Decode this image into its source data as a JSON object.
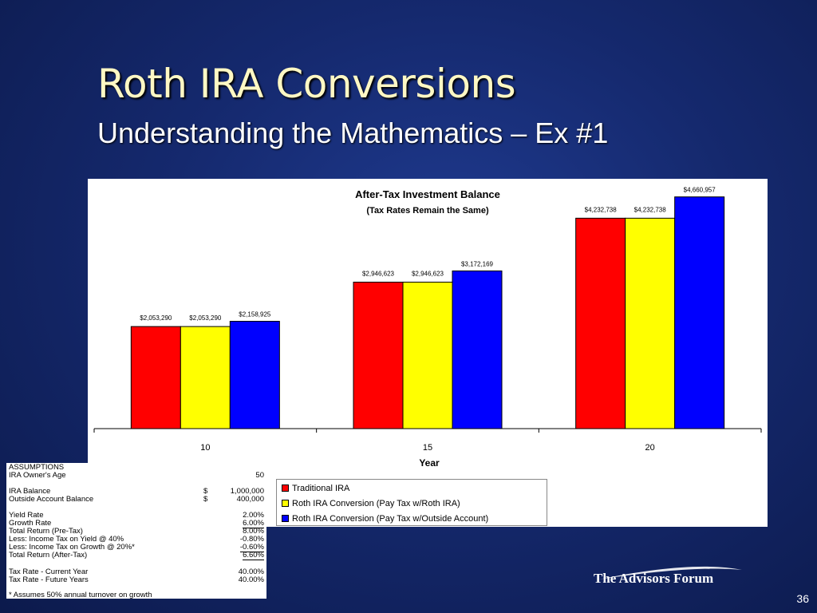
{
  "slide": {
    "title": "Roth IRA Conversions",
    "subtitle": "Understanding the Mathematics – Ex #1",
    "page_number": "36",
    "logo_text": "The Advisors Forum"
  },
  "chart_data": {
    "type": "bar",
    "title": "After-Tax Investment Balance",
    "subtitle": "(Tax Rates Remain the Same)",
    "xlabel": "Year",
    "ylabel": "",
    "categories": [
      "10",
      "15",
      "20"
    ],
    "ylim": [
      0,
      5000000
    ],
    "grid": false,
    "series": [
      {
        "name": "Traditional IRA",
        "color": "#ff0000",
        "values": [
          2053290,
          2946623,
          4232738
        ],
        "labels": [
          "$2,053,290",
          "$2,946,623",
          "$4,232,738"
        ]
      },
      {
        "name": "Roth IRA Conversion (Pay Tax w/Roth IRA)",
        "color": "#ffff00",
        "values": [
          2053290,
          2946623,
          4232738
        ],
        "labels": [
          "$2,053,290",
          "$2,946,623",
          "$4,232,738"
        ]
      },
      {
        "name": "Roth IRA Conversion (Pay Tax w/Outside Account)",
        "color": "#0000ff",
        "values": [
          2158925,
          3172169,
          4660957
        ],
        "labels": [
          "$2,158,925",
          "$3,172,169",
          "$4,660,957"
        ]
      }
    ],
    "legend_position": "bottom"
  },
  "assumptions": {
    "header": "ASSUMPTIONS",
    "rows": [
      {
        "label": "IRA Owner's Age",
        "currency": "",
        "value": "50"
      },
      {
        "label": "IRA Balance",
        "currency": "$",
        "value": "1,000,000"
      },
      {
        "label": "Outside Account Balance",
        "currency": "$",
        "value": "400,000"
      },
      {
        "label": "Yield Rate",
        "currency": "",
        "value": "2.00%"
      },
      {
        "label": "Growth Rate",
        "currency": "",
        "value": "6.00%"
      },
      {
        "label": "Total Return (Pre-Tax)",
        "currency": "",
        "value": "8.00%"
      },
      {
        "label": "Less: Income Tax on Yield @ 40%",
        "currency": "",
        "value": "-0.80%"
      },
      {
        "label": "Less: Income Tax on Growth @ 20%*",
        "currency": "",
        "value": "-0.60%"
      },
      {
        "label": "Total Return (After-Tax)",
        "currency": "",
        "value": "6.60%"
      },
      {
        "label": "Tax Rate - Current Year",
        "currency": "",
        "value": "40.00%"
      },
      {
        "label": "Tax Rate - Future Years",
        "currency": "",
        "value": "40.00%"
      }
    ],
    "footnote": "* Assumes 50% annual turnover on growth"
  }
}
